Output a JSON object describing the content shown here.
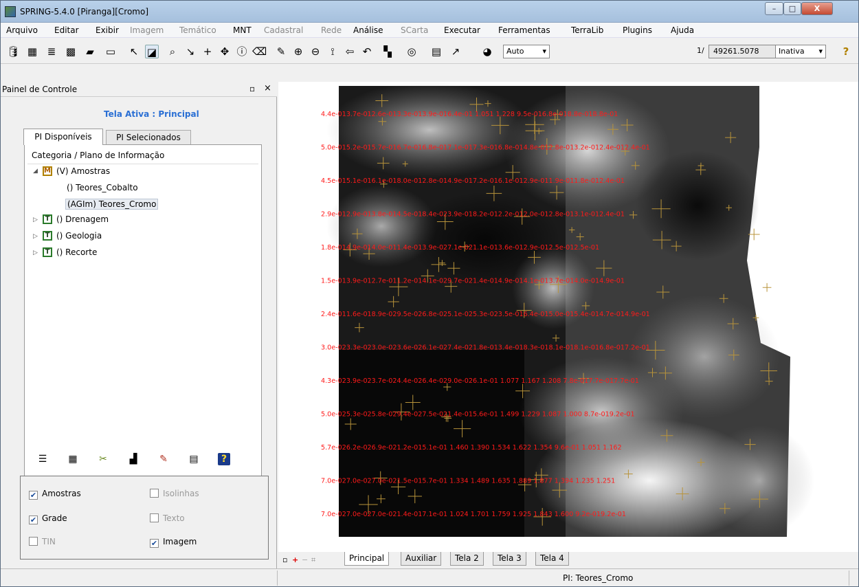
{
  "window": {
    "title": "SPRING-5.4.0 [Piranga][Cromo]",
    "min": "–",
    "max": "□",
    "close": "X"
  },
  "menu": [
    {
      "label": "Arquivo",
      "enabled": true
    },
    {
      "label": "Editar",
      "enabled": true
    },
    {
      "label": "Exibir",
      "enabled": true
    },
    {
      "label": "Imagem",
      "enabled": false
    },
    {
      "label": "Temático",
      "enabled": false
    },
    {
      "label": "MNT",
      "enabled": true
    },
    {
      "label": "Cadastral",
      "enabled": false
    },
    {
      "label": "Rede",
      "enabled": false
    },
    {
      "label": "Análise",
      "enabled": true
    },
    {
      "label": "SCarta",
      "enabled": false
    },
    {
      "label": "Executar",
      "enabled": true
    },
    {
      "label": "Ferramentas",
      "enabled": true
    },
    {
      "label": "TerraLib",
      "enabled": true
    },
    {
      "label": "Plugins",
      "enabled": true
    },
    {
      "label": "Ajuda",
      "enabled": true
    }
  ],
  "toolbar": {
    "icons": [
      "database-icon",
      "image-catalog-icon",
      "layers-icon",
      "grid-icon",
      "polygon-icon",
      "rectangle-icon",
      "cursor-icon",
      "selection-icon",
      "zoom-icon",
      "down-right-arrow-icon",
      "crosshair-icon",
      "pan-icon",
      "info-icon",
      "eraser-icon",
      "edit-pencil-icon",
      "zoom-in-icon",
      "zoom-out-icon",
      "zoom-area-icon",
      "back-arrow-icon",
      "undo-icon",
      "mosaic-icon",
      "scale-zoom-icon",
      "raster-icon",
      "pointer-plus-icon",
      "palette-icon"
    ],
    "mode": "Auto",
    "scale_prefix": "1/",
    "scale_value": "49261.5078",
    "status_combo": "Inativa",
    "help": "?"
  },
  "panel": {
    "title": "Painel de Controle",
    "float": "▫",
    "close": "×",
    "active_screen": "Tela Ativa : Principal",
    "tabs": [
      "PI Disponíveis",
      "PI Selecionados"
    ],
    "tree_header": "Categoria / Plano de Informação",
    "tree": {
      "amostras": {
        "badge": "M",
        "label": "(V) Amostras"
      },
      "cobalto": "() Teores_Cobalto",
      "cromo": "(AGIm) Teores_Cromo",
      "drenagem": {
        "badge": "T",
        "label": "() Drenagem"
      },
      "geologia": {
        "badge": "T",
        "label": "() Geologia"
      },
      "recorte": {
        "badge": "T",
        "label": "() Recorte"
      }
    },
    "icon_strip": [
      "list-icon",
      "table-icon",
      "tools-icon",
      "chart-icon",
      "pencil-icon",
      "legend-icon",
      "help-icon"
    ],
    "checkboxes": {
      "amostras": {
        "label": "Amostras",
        "checked": true,
        "enabled": true
      },
      "isolinhas": {
        "label": "Isolinhas",
        "checked": false,
        "enabled": false
      },
      "grade": {
        "label": "Grade",
        "checked": true,
        "enabled": true
      },
      "texto": {
        "label": "Texto",
        "checked": false,
        "enabled": false
      },
      "tin": {
        "label": "TIN",
        "checked": false,
        "enabled": false
      },
      "imagem": {
        "label": "Imagem",
        "checked": true,
        "enabled": true
      }
    }
  },
  "view_tabs": [
    "Principal",
    "Auxiliar",
    "Tela 2",
    "Tela 3",
    "Tela 4"
  ],
  "status": {
    "pi": "PI: Teores_Cromo"
  },
  "grid_labels": [
    "4.4e-013.7e-012.6e-013.3e-013.9e-016.4e-01  1.051   1.228  9.5e-016.8e-018.8e-018.8e-01",
    "5.0e-015.2e-015.7e-016.7e-016.8e-017.1e-017.3e-016.8e-014.8e-012.8e-013.2e-012.4e-012.4e-01",
    "4.5e-015.1e-016.1e-018.0e-012.8e-014.9e-017.2e-016.1e-012.9e-011.9e-011.8e-012.4e-01",
    "2.9e-012.9e-013.8e-014.5e-018.4e-023.9e-018.2e-012.2e-012.0e-012.8e-013.1e-012.4e-01",
    "1.8e-014.9e-014.0e-011.4e-013.9e-027.1e-021.1e-013.6e-012.9e-012.5e-012.5e-01",
    "1.5e-013.9e-012.7e-011.2e-014.1e-029.7e-021.4e-014.9e-014.1e-013.7e-014.0e-014.9e-01",
    "2.4e-011.6e-018.9e-029.5e-026.8e-025.1e-025.3e-023.5e-016.4e-015.0e-015.4e-014.7e-014.9e-01",
    "3.0e-023.3e-023.0e-023.6e-026.1e-027.4e-021.8e-013.4e-018.3e-018.1e-018.1e-016.8e-017.2e-01",
    "4.3e-023.9e-023.7e-024.4e-026.4e-029.0e-026.1e-01  1.077   1.167   1.208  7.8e-017.7e-017.7e-01",
    "5.0e-025.3e-025.8e-029.4e-027.5e-021.4e-015.6e-01  1.499   1.229   1.087   1.000  8.7e-019.2e-01",
    "5.7e-026.2e-026.9e-021.2e-015.1e-01  1.460   1.390   1.534   1.622   1.354  9.6e-01  1.051   1.162",
    "7.0e-027.0e-027.0e-021.5e-015.7e-01  1.334   1.489   1.635   1.889   1.877   1.394   1.235   1.251",
    "7.0e-027.0e-027.0e-021.4e-017.1e-01  1.024   1.701   1.759   1.925   1.843   1.600  9.2e-019.2e-01"
  ]
}
